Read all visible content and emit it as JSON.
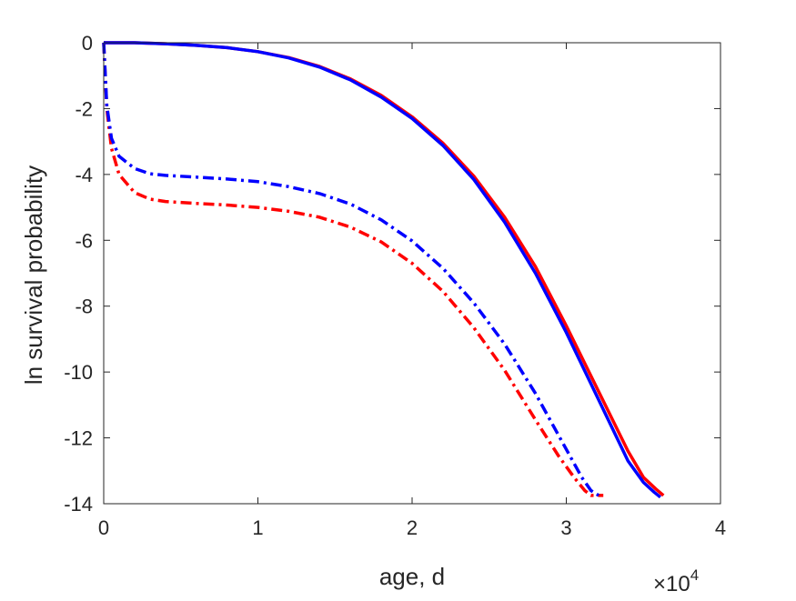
{
  "chart_data": {
    "type": "line",
    "title": "",
    "xlabel": "age, d",
    "ylabel": "ln survival probability",
    "x_exponent_label": {
      "base": "×10",
      "exponent": "4"
    },
    "xlim": [
      0,
      40000
    ],
    "ylim": [
      -14,
      0
    ],
    "x_ticks": [
      0,
      10000,
      20000,
      30000,
      40000
    ],
    "x_tick_labels": [
      "0",
      "1",
      "2",
      "3",
      "4"
    ],
    "y_ticks": [
      0,
      -2,
      -4,
      -6,
      -8,
      -10,
      -12,
      -14
    ],
    "y_tick_labels": [
      "0",
      "-2",
      "-4",
      "-6",
      "-8",
      "-10",
      "-12",
      "-14"
    ],
    "grid": false,
    "legend": "none",
    "series": [
      {
        "color": "#ff0000",
        "style": "solid",
        "x": [
          0,
          2000,
          4000,
          6000,
          8000,
          10000,
          12000,
          14000,
          16000,
          18000,
          20000,
          22000,
          24000,
          26000,
          28000,
          30000,
          32000,
          34000,
          35000,
          35800,
          36300
        ],
        "y": [
          0,
          0,
          -0.03,
          -0.08,
          -0.15,
          -0.27,
          -0.45,
          -0.72,
          -1.1,
          -1.6,
          -2.25,
          -3.05,
          -4.05,
          -5.3,
          -6.8,
          -8.6,
          -10.5,
          -12.4,
          -13.2,
          -13.55,
          -13.75
        ]
      },
      {
        "color": "#0000ff",
        "style": "solid",
        "x": [
          0,
          2000,
          4000,
          6000,
          8000,
          10000,
          12000,
          14000,
          16000,
          18000,
          20000,
          22000,
          24000,
          26000,
          28000,
          30000,
          32000,
          34000,
          35000,
          35700,
          36100
        ],
        "y": [
          0,
          0,
          -0.03,
          -0.08,
          -0.15,
          -0.27,
          -0.46,
          -0.74,
          -1.13,
          -1.65,
          -2.3,
          -3.12,
          -4.15,
          -5.45,
          -7.0,
          -8.8,
          -10.75,
          -12.7,
          -13.35,
          -13.65,
          -13.8
        ]
      },
      {
        "color": "#ff0000",
        "style": "dash-dot",
        "x": [
          0,
          200,
          500,
          1000,
          2000,
          3000,
          4000,
          6000,
          8000,
          10000,
          12000,
          14000,
          16000,
          18000,
          20000,
          22000,
          24000,
          26000,
          28000,
          29500,
          30500,
          31200,
          31600,
          32400
        ],
        "y": [
          0,
          -2.0,
          -3.2,
          -4.0,
          -4.55,
          -4.75,
          -4.82,
          -4.88,
          -4.93,
          -5.0,
          -5.12,
          -5.3,
          -5.6,
          -6.05,
          -6.7,
          -7.55,
          -8.65,
          -9.95,
          -11.45,
          -12.55,
          -13.2,
          -13.6,
          -13.75,
          -13.75
        ]
      },
      {
        "color": "#0000ff",
        "style": "dash-dot",
        "x": [
          0,
          200,
          500,
          1000,
          2000,
          3000,
          4000,
          6000,
          8000,
          10000,
          12000,
          14000,
          16000,
          18000,
          20000,
          22000,
          24000,
          26000,
          28000,
          30000,
          31000,
          31600,
          32100
        ],
        "y": [
          0,
          -1.9,
          -2.9,
          -3.45,
          -3.82,
          -3.98,
          -4.03,
          -4.08,
          -4.14,
          -4.22,
          -4.37,
          -4.58,
          -4.9,
          -5.38,
          -6.02,
          -6.85,
          -7.9,
          -9.15,
          -10.65,
          -12.35,
          -13.2,
          -13.6,
          -13.75
        ]
      }
    ]
  }
}
